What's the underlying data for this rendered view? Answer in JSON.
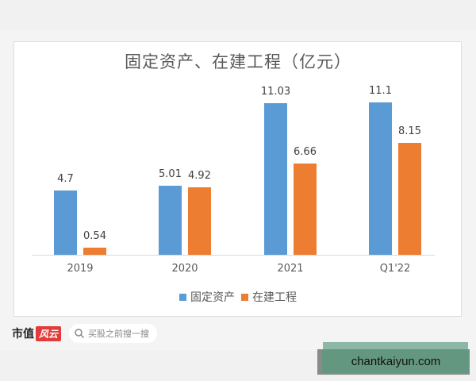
{
  "chart_data": {
    "type": "bar",
    "title": "固定资产、在建工程（亿元）",
    "categories": [
      "2019",
      "2020",
      "2021",
      "Q1'22"
    ],
    "series": [
      {
        "name": "固定资产",
        "color": "#5b9bd5",
        "values": [
          4.7,
          5.01,
          11.03,
          11.1
        ],
        "labels": [
          "4.7",
          "5.01",
          "11.03",
          "11.1"
        ]
      },
      {
        "name": "在建工程",
        "color": "#ed7d31",
        "values": [
          0.54,
          4.92,
          6.66,
          8.15
        ],
        "labels": [
          "0.54",
          "4.92",
          "6.66",
          "8.15"
        ]
      }
    ],
    "xlabel": "",
    "ylabel": "",
    "ylim": [
      0,
      12
    ],
    "grid": false,
    "legend_position": "bottom"
  },
  "footer": {
    "brand": "市值",
    "brand_badge": "风云",
    "search_placeholder": "买股之前搜一搜"
  },
  "watermark": {
    "text": "chantkaiyun.com"
  }
}
